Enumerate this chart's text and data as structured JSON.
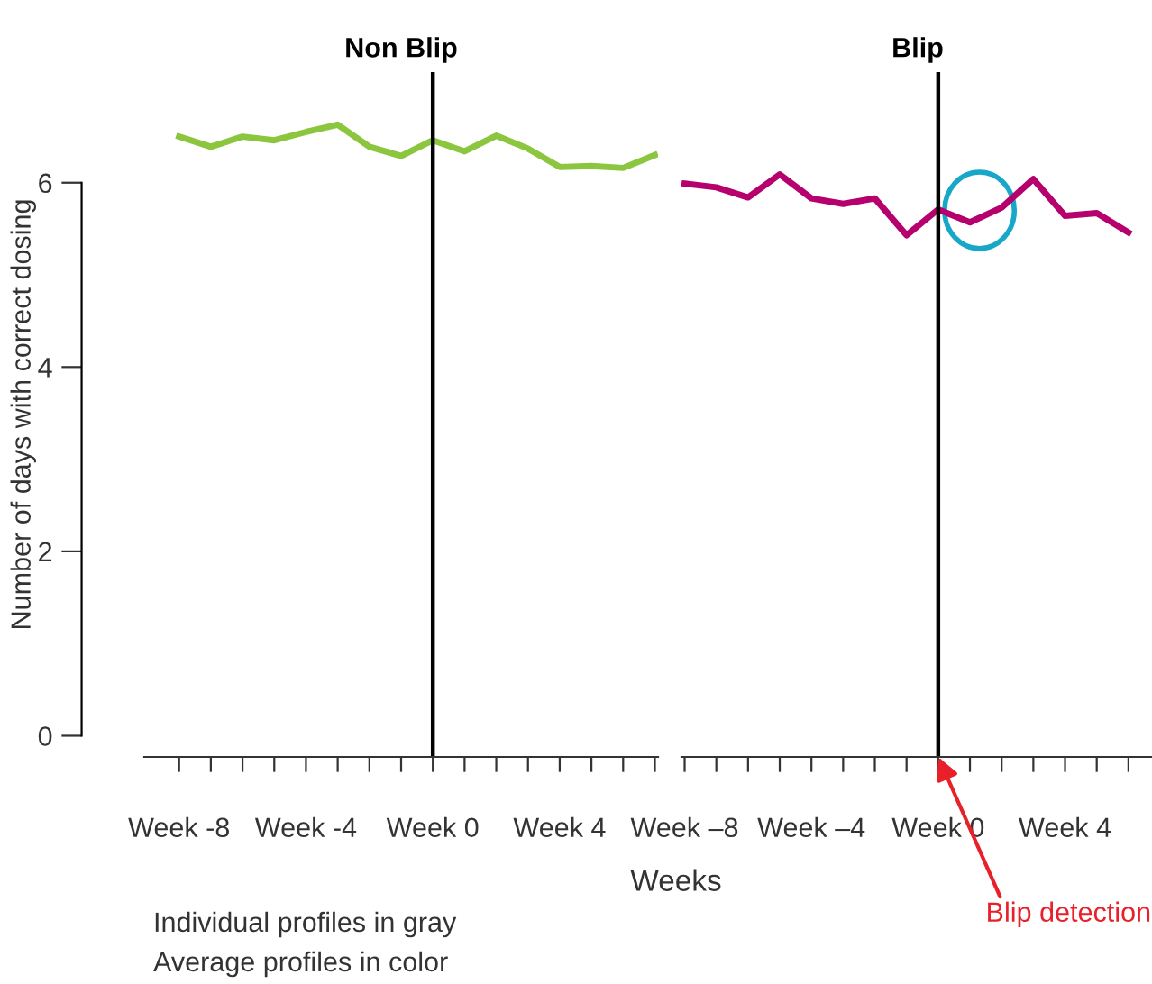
{
  "chart_data": [
    {
      "type": "line",
      "title": "Non Blip",
      "ylabel": "Number of days with correct dosing",
      "xlabel": "Weeks",
      "x": [
        -8,
        -7,
        -6,
        -5,
        -4,
        -3,
        -2,
        -1,
        0,
        1,
        2,
        3,
        4,
        5,
        6,
        7
      ],
      "series": [
        {
          "color": "#8cc63f",
          "values": [
            6.5,
            6.39,
            6.5,
            6.46,
            6.55,
            6.63,
            6.39,
            6.29,
            6.46,
            6.34,
            6.51,
            6.37,
            6.17,
            6.18,
            6.16,
            6.3
          ]
        }
      ],
      "xlim": [
        -9.1,
        7.1
      ],
      "ylim": [
        -0.23,
        7.2
      ],
      "xticks": [
        {
          "value": -8,
          "label": "Week -8"
        },
        {
          "value": -7,
          "label": null
        },
        {
          "value": -6,
          "label": null
        },
        {
          "value": -5,
          "label": null
        },
        {
          "value": -4,
          "label": "Week -4"
        },
        {
          "value": -3,
          "label": null
        },
        {
          "value": -2,
          "label": null
        },
        {
          "value": -1,
          "label": null
        },
        {
          "value": 0,
          "label": "Week 0"
        },
        {
          "value": 1,
          "label": null
        },
        {
          "value": 2,
          "label": null
        },
        {
          "value": 3,
          "label": null
        },
        {
          "value": 4,
          "label": "Week 4"
        },
        {
          "value": 5,
          "label": null
        },
        {
          "value": 6,
          "label": null
        },
        {
          "value": 7,
          "label": null
        }
      ],
      "yticks": [
        0,
        2,
        4,
        6
      ],
      "ref_lines": [
        {
          "axis": "x",
          "value": 0,
          "color": "#000000"
        }
      ],
      "annotations": [
        "Individual profiles in gray",
        "Average profiles in color"
      ],
      "grid": false,
      "legend": false
    },
    {
      "type": "line",
      "title": "Blip",
      "x": [
        -8,
        -7,
        -6,
        -5,
        -4,
        -3,
        -2,
        -1,
        0,
        1,
        2,
        3,
        4,
        5,
        6
      ],
      "series": [
        {
          "color": "#b5006e",
          "values": [
            5.99,
            5.95,
            5.84,
            6.09,
            5.83,
            5.77,
            5.83,
            5.43,
            5.71,
            5.57,
            5.73,
            6.04,
            5.64,
            5.67,
            5.46
          ]
        }
      ],
      "xlim": [
        -8.1,
        6.8
      ],
      "ylim": [
        -0.23,
        7.2
      ],
      "xticks": [
        {
          "value": -8,
          "label": "Week –8"
        },
        {
          "value": -7,
          "label": null
        },
        {
          "value": -6,
          "label": null
        },
        {
          "value": -5,
          "label": null
        },
        {
          "value": -4,
          "label": "Week –4"
        },
        {
          "value": -3,
          "label": null
        },
        {
          "value": -2,
          "label": null
        },
        {
          "value": -1,
          "label": null
        },
        {
          "value": 0,
          "label": "Week 0"
        },
        {
          "value": 1,
          "label": null
        },
        {
          "value": 2,
          "label": null
        },
        {
          "value": 3,
          "label": null
        },
        {
          "value": 4,
          "label": "Week 4"
        },
        {
          "value": 5,
          "label": null
        },
        {
          "value": 6,
          "label": null
        }
      ],
      "ref_lines": [
        {
          "axis": "x",
          "value": 0,
          "color": "#000000"
        }
      ],
      "annotations": [
        {
          "text": "Blip detection",
          "x": 0,
          "y": -0.23
        }
      ],
      "tick_labels": "x",
      "grid": false,
      "legend": false
    }
  ]
}
